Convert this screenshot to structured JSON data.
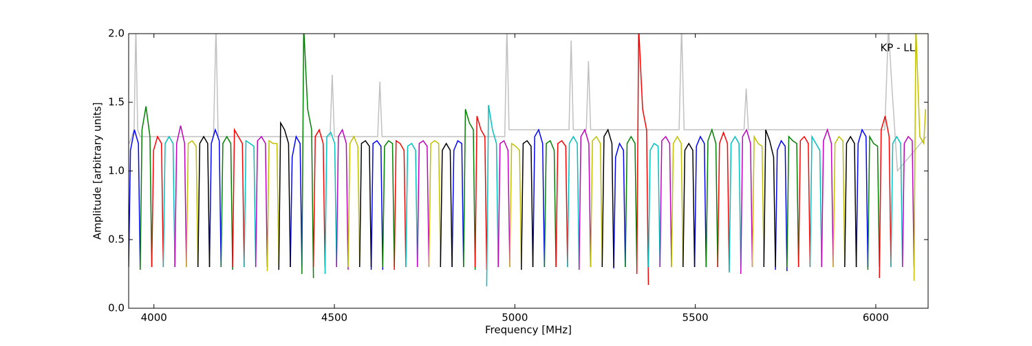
{
  "chart_data": {
    "type": "line",
    "xlabel": "Frequency [MHz]",
    "ylabel": "Amplitude [arbitrary units]",
    "annotation": "KP - LL",
    "xlim": [
      3930,
      6145
    ],
    "ylim": [
      0,
      2
    ],
    "xticks": [
      4000,
      4500,
      5000,
      5500,
      6000
    ],
    "yticks": [
      {
        "value": 0,
        "label": "0.0"
      },
      0.5,
      {
        "value": 1,
        "label": "1.0"
      },
      1.5,
      {
        "value": 2,
        "label": "2.0"
      }
    ],
    "series": [
      {
        "color": "#c0c0c0",
        "x": [
          3932,
          3945,
          3950,
          3955,
          3962,
          3975,
          4165,
          4172,
          4178,
          4185,
          4488,
          4494,
          4500,
          4620,
          4626,
          4632,
          4972,
          4978,
          4984,
          5150,
          5156,
          5162,
          5198,
          5204,
          5210,
          5455,
          5462,
          5469,
          5635,
          5641,
          5647,
          6025,
          6035,
          6045,
          6060,
          6140
        ],
        "values": [
          1.2,
          1.3,
          2.05,
          1.3,
          1.25,
          1.25,
          1.25,
          2.05,
          1.25,
          1.25,
          1.25,
          1.7,
          1.25,
          1.25,
          1.65,
          1.25,
          1.25,
          2.05,
          1.3,
          1.3,
          1.95,
          1.3,
          1.3,
          1.8,
          1.3,
          1.3,
          2.05,
          1.3,
          1.3,
          1.6,
          1.3,
          1.3,
          2.05,
          1.6,
          1.0,
          1.25
        ]
      },
      {
        "color": "#0000ff",
        "x": [
          3930,
          3935,
          3946,
          3957,
          3962,
          null,
          4154,
          4159,
          4170,
          4181,
          4186,
          null,
          4378,
          4383,
          4394,
          4405,
          4410,
          null,
          4602,
          4607,
          4618,
          4629,
          4634,
          null,
          4826,
          4831,
          4842,
          4853,
          4858,
          null,
          5050,
          5055,
          5066,
          5077,
          5082,
          null,
          5274,
          5279,
          5290,
          5301,
          5306,
          null,
          5498,
          5503,
          5514,
          5525,
          5530,
          null,
          5722,
          5727,
          5738,
          5749,
          5754,
          null,
          5946,
          5951,
          5962,
          5973,
          5978
        ],
        "values": [
          0.3,
          1.15,
          1.3,
          1.2,
          0.28,
          null,
          0.3,
          1.2,
          1.3,
          1.22,
          0.3,
          null,
          0.3,
          1.1,
          1.25,
          1.2,
          0.3,
          null,
          0.28,
          1.2,
          1.22,
          1.18,
          0.28,
          null,
          0.3,
          1.15,
          1.22,
          1.2,
          0.3,
          null,
          0.3,
          1.25,
          1.3,
          1.2,
          0.3,
          null,
          0.29,
          1.1,
          1.2,
          1.15,
          0.3,
          null,
          0.3,
          1.18,
          1.25,
          1.2,
          0.3,
          null,
          0.28,
          1.15,
          1.22,
          1.18,
          0.27,
          null,
          0.3,
          1.2,
          1.3,
          1.25,
          0.3
        ]
      },
      {
        "color": "#008000",
        "x": [
          3962,
          3967,
          3978,
          3989,
          3994,
          null,
          4186,
          4191,
          4202,
          4213,
          4218,
          null,
          4410,
          4415,
          4426,
          4437,
          4442,
          null,
          4634,
          4639,
          4650,
          4661,
          4666,
          null,
          4858,
          4863,
          4874,
          4885,
          4890,
          null,
          5082,
          5087,
          5098,
          5109,
          5114,
          null,
          5306,
          5311,
          5322,
          5333,
          5338,
          null,
          5530,
          5535,
          5546,
          5557,
          5562,
          null,
          5754,
          5759,
          5770,
          5781,
          5786,
          null,
          5978,
          5983,
          5994,
          6005,
          6010
        ],
        "values": [
          0.28,
          1.3,
          1.47,
          1.25,
          0.3,
          null,
          0.3,
          1.2,
          1.25,
          1.2,
          0.28,
          null,
          0.25,
          2.05,
          1.45,
          1.3,
          0.22,
          null,
          0.3,
          1.18,
          1.22,
          1.2,
          0.3,
          null,
          0.3,
          1.45,
          1.35,
          1.3,
          0.28,
          null,
          0.3,
          1.2,
          1.22,
          1.15,
          0.3,
          null,
          0.3,
          1.2,
          1.25,
          1.2,
          0.3,
          null,
          0.3,
          1.22,
          1.3,
          1.2,
          0.3,
          null,
          0.3,
          1.25,
          1.22,
          1.2,
          0.3,
          null,
          0.28,
          1.25,
          1.2,
          1.18,
          0.3
        ]
      },
      {
        "color": "#ff0000",
        "x": [
          3994,
          3999,
          4010,
          4021,
          4026,
          null,
          4218,
          4223,
          4234,
          4245,
          4250,
          null,
          4442,
          4447,
          4458,
          4469,
          4474,
          null,
          4666,
          4671,
          4682,
          4693,
          4698,
          null,
          4890,
          4895,
          4906,
          4917,
          4922,
          null,
          5114,
          5119,
          5130,
          5141,
          5146,
          null,
          5338,
          5343,
          5354,
          5365,
          5370,
          null,
          5562,
          5567,
          5578,
          5589,
          5594,
          null,
          5786,
          5791,
          5802,
          5813,
          5818,
          null,
          6010,
          6015,
          6026,
          6037,
          6042
        ],
        "values": [
          0.3,
          1.15,
          1.25,
          1.2,
          0.3,
          null,
          0.3,
          1.3,
          1.25,
          1.2,
          0.3,
          null,
          0.3,
          1.25,
          1.3,
          1.2,
          0.3,
          null,
          0.28,
          1.22,
          1.2,
          1.15,
          0.3,
          null,
          0.3,
          1.4,
          1.3,
          1.25,
          0.28,
          null,
          0.3,
          1.2,
          1.22,
          1.18,
          0.3,
          null,
          0.25,
          2.05,
          1.45,
          1.3,
          0.17,
          null,
          0.3,
          1.2,
          1.28,
          1.2,
          0.27,
          null,
          0.3,
          1.22,
          1.25,
          1.2,
          0.3,
          null,
          0.22,
          1.3,
          1.4,
          1.25,
          0.3
        ]
      },
      {
        "color": "#00bfbf",
        "x": [
          4026,
          4031,
          4042,
          4053,
          4058,
          null,
          4250,
          4255,
          4266,
          4277,
          4282,
          null,
          4474,
          4479,
          4490,
          4501,
          4506,
          null,
          4698,
          4703,
          4714,
          4725,
          4730,
          null,
          4922,
          4927,
          4938,
          4949,
          4954,
          null,
          5146,
          5151,
          5162,
          5173,
          5178,
          null,
          5370,
          5375,
          5386,
          5397,
          5402,
          null,
          5594,
          5599,
          5610,
          5621,
          5626,
          null,
          5818,
          5823,
          5834,
          5845,
          5850,
          null,
          6042,
          6047,
          6058,
          6069,
          6074
        ],
        "values": [
          0.3,
          1.2,
          1.25,
          1.2,
          0.3,
          null,
          0.3,
          1.22,
          1.2,
          1.18,
          0.3,
          null,
          0.25,
          1.25,
          1.28,
          1.2,
          0.3,
          null,
          0.3,
          1.18,
          1.2,
          1.15,
          0.3,
          null,
          0.16,
          1.48,
          1.3,
          1.2,
          0.3,
          null,
          0.3,
          1.2,
          1.25,
          1.2,
          0.3,
          null,
          0.3,
          1.15,
          1.2,
          1.18,
          0.3,
          null,
          0.26,
          1.2,
          1.25,
          1.2,
          0.3,
          null,
          0.3,
          1.25,
          1.2,
          1.15,
          0.3,
          null,
          0.3,
          1.2,
          1.25,
          1.2,
          0.3
        ]
      },
      {
        "color": "#bf00bf",
        "x": [
          4058,
          4063,
          4074,
          4085,
          4090,
          null,
          4282,
          4287,
          4298,
          4309,
          4314,
          null,
          4506,
          4511,
          4522,
          4533,
          4538,
          null,
          4730,
          4735,
          4746,
          4757,
          4762,
          null,
          4954,
          4959,
          4970,
          4981,
          4986,
          null,
          5178,
          5183,
          5194,
          5205,
          5210,
          null,
          5402,
          5407,
          5418,
          5429,
          5434,
          null,
          5626,
          5631,
          5642,
          5653,
          5658,
          null,
          5850,
          5855,
          5866,
          5877,
          5882,
          null,
          6074,
          6079,
          6090,
          6101,
          6106
        ],
        "values": [
          0.3,
          1.2,
          1.33,
          1.2,
          0.3,
          null,
          0.3,
          1.22,
          1.25,
          1.2,
          0.3,
          null,
          0.3,
          1.25,
          1.3,
          1.2,
          0.28,
          null,
          0.3,
          1.2,
          1.22,
          1.18,
          0.3,
          null,
          0.3,
          1.2,
          1.22,
          1.15,
          0.3,
          null,
          0.28,
          1.25,
          1.3,
          1.2,
          0.3,
          null,
          0.3,
          1.22,
          1.25,
          1.2,
          0.3,
          null,
          0.25,
          1.25,
          1.3,
          1.2,
          0.3,
          null,
          0.3,
          1.22,
          1.3,
          1.2,
          0.3,
          null,
          0.3,
          1.2,
          1.25,
          1.22,
          0.3
        ]
      },
      {
        "color": "#bfbf00",
        "x": [
          4090,
          4095,
          4106,
          4117,
          4122,
          null,
          4314,
          4319,
          4330,
          4341,
          4346,
          null,
          4538,
          4543,
          4554,
          4565,
          4570,
          null,
          4762,
          4767,
          4778,
          4789,
          4794,
          null,
          4986,
          4991,
          5002,
          5013,
          5018,
          null,
          5210,
          5215,
          5226,
          5237,
          5242,
          null,
          5434,
          5439,
          5450,
          5461,
          5466,
          null,
          5658,
          5663,
          5674,
          5685,
          5690,
          null,
          5882,
          5887,
          5898,
          5909,
          5914,
          null,
          6106,
          6111,
          6122,
          6133,
          6138
        ],
        "values": [
          0.3,
          1.2,
          1.22,
          1.18,
          0.3,
          null,
          0.27,
          1.22,
          1.2,
          1.2,
          0.3,
          null,
          0.3,
          1.2,
          1.25,
          1.18,
          0.3,
          null,
          0.3,
          1.2,
          1.22,
          1.2,
          0.3,
          null,
          0.3,
          1.2,
          1.18,
          1.15,
          0.3,
          null,
          0.3,
          1.22,
          1.25,
          1.2,
          0.3,
          null,
          0.3,
          1.2,
          1.25,
          1.2,
          0.3,
          null,
          0.3,
          1.25,
          1.2,
          1.18,
          0.3,
          null,
          0.3,
          1.2,
          1.25,
          1.22,
          0.3,
          null,
          0.2,
          2.05,
          1.25,
          1.2,
          1.45
        ]
      },
      {
        "color": "#000000",
        "x": [
          4122,
          4127,
          4138,
          4149,
          4154,
          null,
          4346,
          4351,
          4362,
          4373,
          4378,
          null,
          4570,
          4575,
          4586,
          4597,
          4602,
          null,
          4794,
          4799,
          4810,
          4821,
          4826,
          null,
          5018,
          5023,
          5034,
          5045,
          5050,
          null,
          5242,
          5247,
          5258,
          5269,
          5274,
          null,
          5466,
          5471,
          5482,
          5493,
          5498,
          null,
          5690,
          5695,
          5706,
          5717,
          5722,
          null,
          5914,
          5919,
          5930,
          5941,
          5946
        ],
        "values": [
          0.3,
          1.2,
          1.25,
          1.2,
          0.3,
          null,
          0.28,
          1.35,
          1.3,
          1.2,
          0.3,
          null,
          0.3,
          1.2,
          1.22,
          1.18,
          0.3,
          null,
          0.3,
          1.15,
          1.2,
          1.15,
          0.3,
          null,
          0.28,
          1.2,
          1.22,
          1.18,
          0.3,
          null,
          0.3,
          1.25,
          1.3,
          1.2,
          0.3,
          null,
          0.3,
          1.15,
          1.2,
          1.15,
          0.3,
          null,
          0.3,
          1.3,
          1.22,
          1.1,
          0.3,
          null,
          0.3,
          1.2,
          1.25,
          1.2,
          0.3
        ]
      }
    ]
  }
}
